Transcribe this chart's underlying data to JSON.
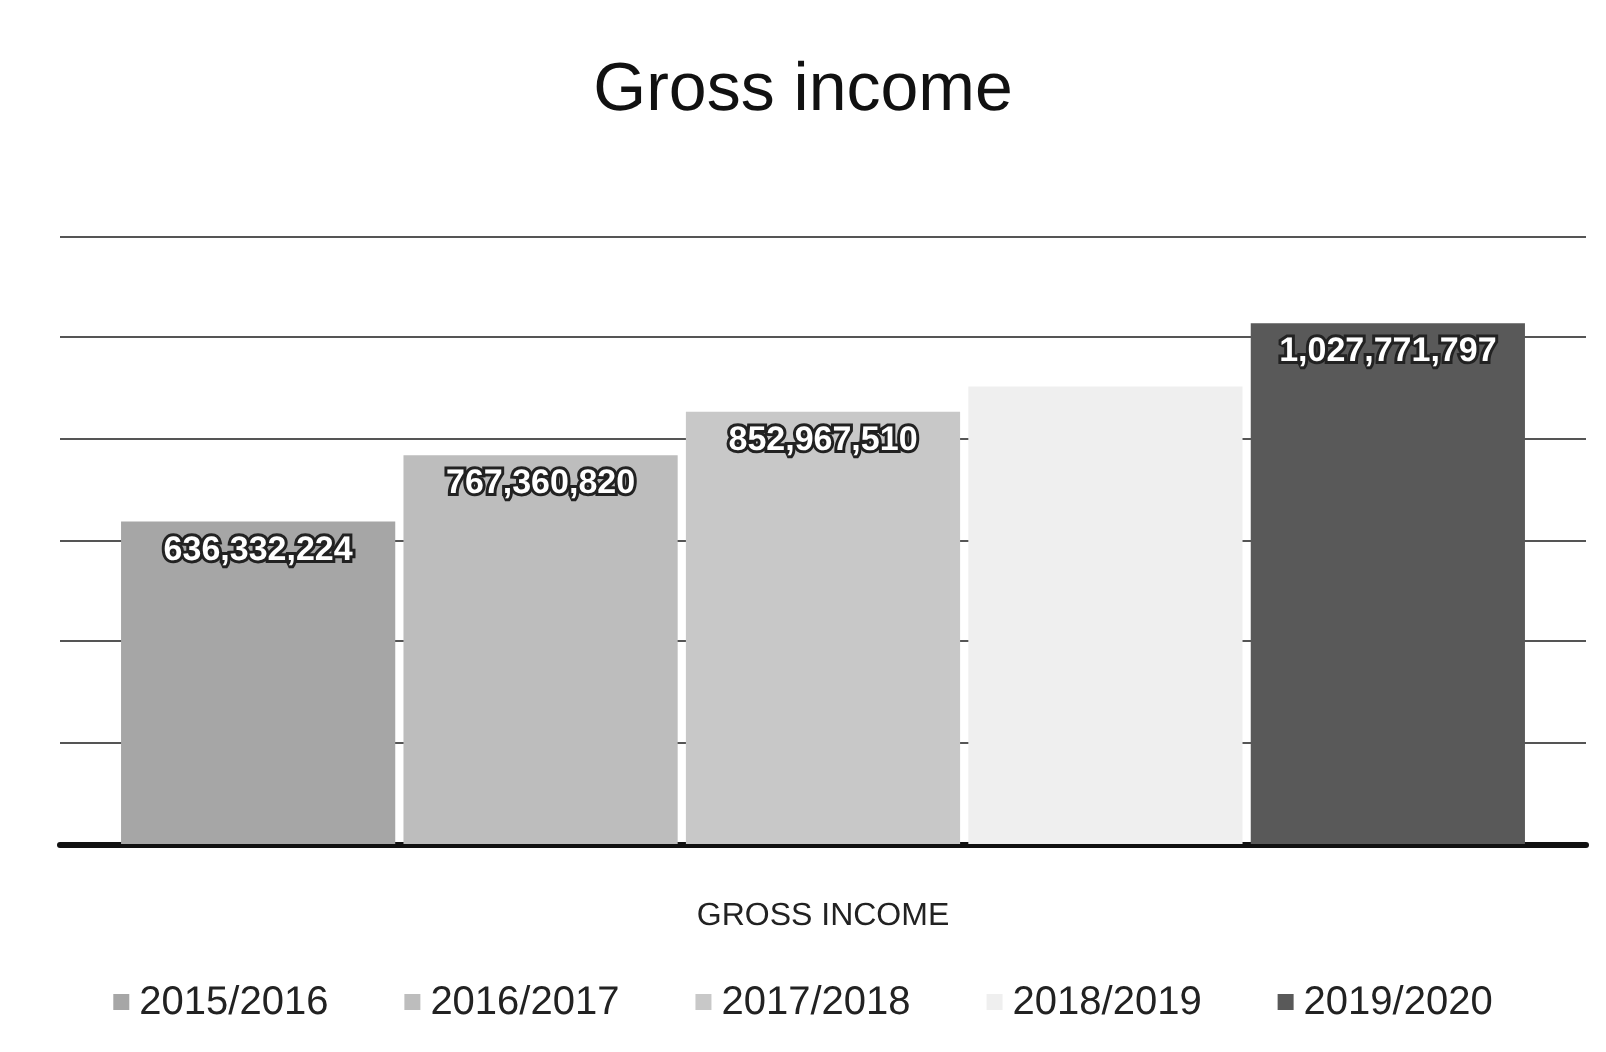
{
  "chart_data": {
    "type": "bar",
    "title": "Gross income",
    "xlabel": "GROSS INCOME",
    "categories": [
      null
    ],
    "series": [
      {
        "name": "2015/2016",
        "color": "#a6a6a6",
        "values": [
          636332224
        ],
        "value_labels": [
          "636,332,224"
        ]
      },
      {
        "name": "2016/2017",
        "color": "#bdbdbd",
        "values": [
          767360820
        ],
        "value_labels": [
          "767,360,820"
        ]
      },
      {
        "name": "2017/2018",
        "color": "#c8c8c8",
        "values": [
          852967510
        ],
        "value_labels": [
          "852,967,510"
        ]
      },
      {
        "name": "2018/2019",
        "color": "#efefef",
        "values": [
          903000000
        ],
        "value_labels": [
          null
        ]
      },
      {
        "name": "2019/2020",
        "color": "#595959",
        "values": [
          1027771797
        ],
        "value_labels": [
          "1,027,771,797"
        ]
      }
    ],
    "ylim": [
      0,
      1200000000
    ],
    "yticks": [
      {
        "value": 0,
        "label": null
      },
      {
        "value": 200000000,
        "label": null
      },
      {
        "value": 400000000,
        "label": null
      },
      {
        "value": 600000000,
        "label": null
      },
      {
        "value": 800000000,
        "label": null
      },
      {
        "value": 1000000000,
        "label": null
      },
      {
        "value": 1200000000,
        "label": null
      }
    ],
    "grid": "y",
    "legend": "bottom"
  }
}
